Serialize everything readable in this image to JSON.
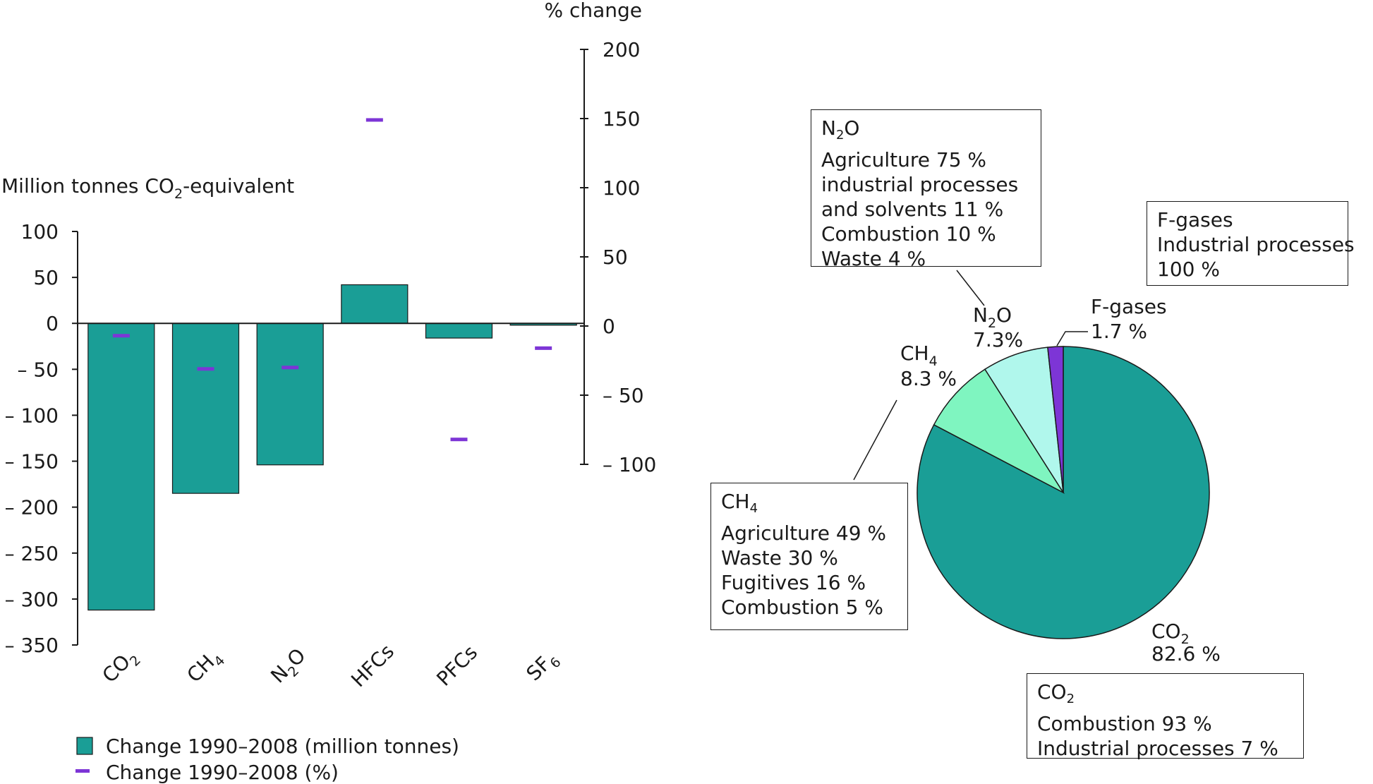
{
  "colors": {
    "bar": "#1a9e96",
    "pct_marker": "#7d35d6",
    "co2_slice": "#1a9e96",
    "ch4_slice": "#7ff5c0",
    "n2o_slice": "#b0f7ec",
    "fgas_slice": "#7d35d6",
    "axis": "#1a1a1a"
  },
  "chart_data": [
    {
      "type": "bar",
      "ylabel": "Million tonnes CO2-equivalent",
      "ylabel_main": "Million tonnes CO",
      "ylabel_sub": "2",
      "ylabel_tail": "-equivalent",
      "y2label": "% change",
      "ylim": [
        -350,
        100
      ],
      "yticks": [
        100,
        50,
        0,
        -50,
        -100,
        -150,
        -200,
        -250,
        -300,
        -350
      ],
      "ytick_labels": [
        "100",
        "50",
        "0",
        "– 50",
        "– 100",
        "– 150",
        "– 200",
        "– 250",
        "– 300",
        "– 350"
      ],
      "y2lim": [
        -100,
        200
      ],
      "y2ticks": [
        200,
        150,
        100,
        50,
        0,
        -50,
        -100
      ],
      "y2tick_labels": [
        "200",
        "150",
        "100",
        "50",
        "0",
        "– 50",
        "– 100"
      ],
      "categories": [
        {
          "main": "CO",
          "sub": "2",
          "tail": ""
        },
        {
          "main": "CH",
          "sub": "4",
          "tail": ""
        },
        {
          "main": "N",
          "sub": "2",
          "tail": "O"
        },
        {
          "main": "HFCs",
          "sub": "",
          "tail": ""
        },
        {
          "main": "PFCs",
          "sub": "",
          "tail": ""
        },
        {
          "main": "SF",
          "sub": "6",
          "tail": ""
        }
      ],
      "series": [
        {
          "name": "Change 1990–2008 (million tonnes)",
          "axis": "left",
          "values": [
            -312,
            -185,
            -154,
            42,
            -16,
            -2
          ]
        },
        {
          "name": "Change 1990–2008 (%)",
          "axis": "right",
          "values": [
            -7,
            -31,
            -30,
            149,
            -82,
            -16
          ]
        }
      ],
      "legend_position": "bottom-left",
      "grid": false
    },
    {
      "type": "pie",
      "slices": [
        {
          "label_main": "CO",
          "label_sub": "2",
          "label_tail": "",
          "value": 82.6,
          "value_label": "82.6 %"
        },
        {
          "label_main": "CH",
          "label_sub": "4",
          "label_tail": "",
          "value": 8.3,
          "value_label": "8.3 %"
        },
        {
          "label_main": "N",
          "label_sub": "2",
          "label_tail": "O",
          "value": 7.3,
          "value_label": "7.3%"
        },
        {
          "label_main": "F-gases",
          "label_sub": "",
          "label_tail": "",
          "value": 1.7,
          "value_label": "1.7 %"
        }
      ]
    }
  ],
  "callouts": {
    "n2o": {
      "title_main": "N",
      "title_sub": "2",
      "title_tail": "O",
      "lines": [
        "Agriculture 75 %",
        "industrial processes",
        "and solvents 11 %",
        "Combustion 10 %",
        "Waste 4 %"
      ]
    },
    "fgas": {
      "title_main": "F-gases",
      "lines": [
        "Industrial processes",
        "100 %"
      ]
    },
    "ch4": {
      "title_main": "CH",
      "title_sub": "4",
      "lines": [
        "Agriculture 49 %",
        "Waste 30 %",
        "Fugitives 16 %",
        "Combustion 5 %"
      ]
    },
    "co2": {
      "title_main": "CO",
      "title_sub": "2",
      "lines": [
        "Combustion 93 %",
        "Industrial processes 7 %"
      ]
    }
  }
}
